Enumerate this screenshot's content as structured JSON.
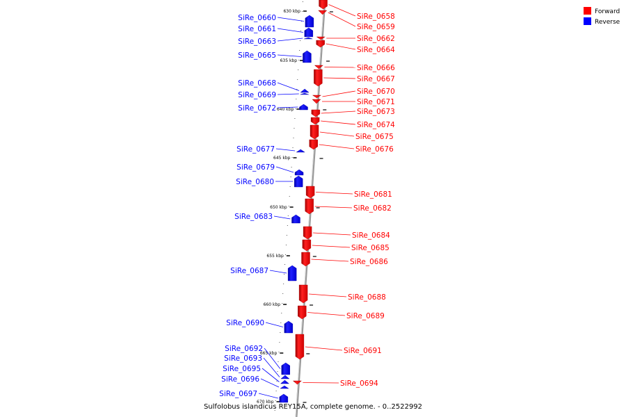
{
  "legend": {
    "items": [
      {
        "label": "Forward",
        "color": "#ff0000"
      },
      {
        "label": "Reverse",
        "color": "#0000ff"
      }
    ]
  },
  "caption": "Sulfolobus islandicus REY15A, complete genome. - 0..2522992",
  "colors": {
    "forward": "#ff0000",
    "reverse": "#0000ff",
    "backbone": "#999999"
  },
  "ticks": [
    "630 kbp",
    "635 kbp",
    "640 kbp",
    "645 kbp",
    "650 kbp",
    "655 kbp",
    "660 kbp",
    "665 kbp",
    "670 kbp"
  ],
  "genes_forward": [
    "SiRe_0658",
    "SiRe_0659",
    "SiRe_0662",
    "SiRe_0664",
    "SiRe_0666",
    "SiRe_0667",
    "SiRe_0670",
    "SiRe_0671",
    "SiRe_0673",
    "SiRe_0674",
    "SiRe_0675",
    "SiRe_0676",
    "SiRe_0681",
    "SiRe_0682",
    "SiRe_0684",
    "SiRe_0685",
    "SiRe_0686",
    "SiRe_0688",
    "SiRe_0689",
    "SiRe_0691",
    "SiRe_0694"
  ],
  "genes_reverse": [
    "SiRe_0660",
    "SiRe_0661",
    "SiRe_0663",
    "SiRe_0665",
    "SiRe_0668",
    "SiRe_0669",
    "SiRe_0672",
    "SiRe_0677",
    "SiRe_0679",
    "SiRe_0680",
    "SiRe_0683",
    "SiRe_0687",
    "SiRe_0690",
    "SiRe_0692",
    "SiRe_0693",
    "SiRe_0695",
    "SiRe_0696",
    "SiRe_0697"
  ]
}
